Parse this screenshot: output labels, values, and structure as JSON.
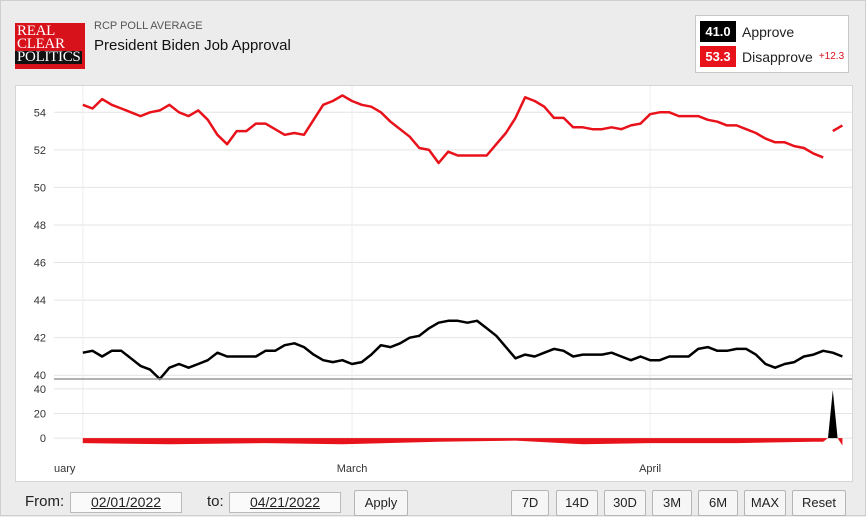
{
  "header": {
    "logo_lines": [
      "REAL",
      "CLEAR",
      "POLITICS"
    ],
    "supertitle": "RCP POLL AVERAGE",
    "title": "President Biden Job Approval"
  },
  "legend": {
    "approve": {
      "value": "41.0",
      "label": "Approve",
      "color": "#000000"
    },
    "disapprove": {
      "value": "53.3",
      "label": "Disapprove",
      "spread": "+12.3",
      "color": "#e8121b"
    }
  },
  "footer": {
    "from_label": "From:",
    "from_date": "02/01/2022",
    "to_label": "to:",
    "to_date": "04/21/2022",
    "apply_label": "Apply",
    "ranges": [
      "7D",
      "14D",
      "30D",
      "3M",
      "6M",
      "MAX",
      "Reset"
    ]
  },
  "chart_data": {
    "type": "line",
    "x_start": "2022-01-29",
    "x_end": "2022-04-22",
    "x_tick_labels": [
      {
        "label": "uary",
        "date": "2022-02-01"
      },
      {
        "label": "March",
        "date": "2022-03-01"
      },
      {
        "label": "April",
        "date": "2022-04-01"
      }
    ],
    "ylim": [
      39.8,
      55.4
    ],
    "y_ticks": [
      40,
      42,
      44,
      46,
      48,
      50,
      52,
      54
    ],
    "grid": true,
    "series": [
      {
        "name": "Disapprove",
        "color": "#e8121b",
        "points": [
          [
            "2022-02-01",
            54.4
          ],
          [
            "2022-02-02",
            54.2
          ],
          [
            "2022-02-03",
            54.7
          ],
          [
            "2022-02-04",
            54.4
          ],
          [
            "2022-02-05",
            54.2
          ],
          [
            "2022-02-06",
            54.0
          ],
          [
            "2022-02-07",
            53.8
          ],
          [
            "2022-02-08",
            54.0
          ],
          [
            "2022-02-09",
            54.1
          ],
          [
            "2022-02-10",
            54.4
          ],
          [
            "2022-02-11",
            54.0
          ],
          [
            "2022-02-12",
            53.8
          ],
          [
            "2022-02-13",
            54.1
          ],
          [
            "2022-02-14",
            53.6
          ],
          [
            "2022-02-15",
            52.8
          ],
          [
            "2022-02-16",
            52.3
          ],
          [
            "2022-02-17",
            53.0
          ],
          [
            "2022-02-18",
            53.0
          ],
          [
            "2022-02-19",
            53.4
          ],
          [
            "2022-02-20",
            53.4
          ],
          [
            "2022-02-21",
            53.1
          ],
          [
            "2022-02-22",
            52.8
          ],
          [
            "2022-02-23",
            52.9
          ],
          [
            "2022-02-24",
            52.8
          ],
          [
            "2022-02-25",
            53.6
          ],
          [
            "2022-02-26",
            54.4
          ],
          [
            "2022-02-27",
            54.6
          ],
          [
            "2022-02-28",
            54.9
          ],
          [
            "2022-03-01",
            54.6
          ],
          [
            "2022-03-02",
            54.4
          ],
          [
            "2022-03-03",
            54.3
          ],
          [
            "2022-03-04",
            54.0
          ],
          [
            "2022-03-05",
            53.5
          ],
          [
            "2022-03-06",
            53.1
          ],
          [
            "2022-03-07",
            52.7
          ],
          [
            "2022-03-08",
            52.1
          ],
          [
            "2022-03-09",
            52.0
          ],
          [
            "2022-03-10",
            51.3
          ],
          [
            "2022-03-11",
            51.9
          ],
          [
            "2022-03-12",
            51.7
          ],
          [
            "2022-03-13",
            51.7
          ],
          [
            "2022-03-14",
            51.7
          ],
          [
            "2022-03-15",
            51.7
          ],
          [
            "2022-03-16",
            52.3
          ],
          [
            "2022-03-17",
            52.9
          ],
          [
            "2022-03-18",
            53.7
          ],
          [
            "2022-03-19",
            54.8
          ],
          [
            "2022-03-20",
            54.6
          ],
          [
            "2022-03-21",
            54.3
          ],
          [
            "2022-03-22",
            53.7
          ],
          [
            "2022-03-23",
            53.7
          ],
          [
            "2022-03-24",
            53.2
          ],
          [
            "2022-03-25",
            53.2
          ],
          [
            "2022-03-26",
            53.1
          ],
          [
            "2022-03-27",
            53.1
          ],
          [
            "2022-03-28",
            53.2
          ],
          [
            "2022-03-29",
            53.1
          ],
          [
            "2022-03-30",
            53.3
          ],
          [
            "2022-03-31",
            53.4
          ],
          [
            "2022-04-01",
            53.9
          ],
          [
            "2022-04-02",
            54.0
          ],
          [
            "2022-04-03",
            54.0
          ],
          [
            "2022-04-04",
            53.8
          ],
          [
            "2022-04-05",
            53.8
          ],
          [
            "2022-04-06",
            53.8
          ],
          [
            "2022-04-07",
            53.6
          ],
          [
            "2022-04-08",
            53.5
          ],
          [
            "2022-04-09",
            53.3
          ],
          [
            "2022-04-10",
            53.3
          ],
          [
            "2022-04-11",
            53.1
          ],
          [
            "2022-04-12",
            52.9
          ],
          [
            "2022-04-13",
            52.6
          ],
          [
            "2022-04-14",
            52.4
          ],
          [
            "2022-04-15",
            52.4
          ],
          [
            "2022-04-16",
            52.2
          ],
          [
            "2022-04-17",
            52.1
          ],
          [
            "2022-04-18",
            51.8
          ],
          [
            "2022-04-19",
            51.6
          ],
          null,
          [
            "2022-04-20",
            53.0
          ],
          [
            "2022-04-21",
            53.3
          ]
        ]
      },
      {
        "name": "Approve",
        "color": "#000000",
        "points": [
          [
            "2022-02-01",
            41.2
          ],
          [
            "2022-02-02",
            41.3
          ],
          [
            "2022-02-03",
            41.0
          ],
          [
            "2022-02-04",
            41.3
          ],
          [
            "2022-02-05",
            41.3
          ],
          [
            "2022-02-06",
            40.9
          ],
          [
            "2022-02-07",
            40.5
          ],
          [
            "2022-02-08",
            40.3
          ],
          [
            "2022-02-09",
            39.8
          ],
          [
            "2022-02-10",
            40.4
          ],
          [
            "2022-02-11",
            40.6
          ],
          [
            "2022-02-12",
            40.4
          ],
          [
            "2022-02-13",
            40.6
          ],
          [
            "2022-02-14",
            40.8
          ],
          [
            "2022-02-15",
            41.2
          ],
          [
            "2022-02-16",
            41.0
          ],
          [
            "2022-02-17",
            41.0
          ],
          [
            "2022-02-18",
            41.0
          ],
          [
            "2022-02-19",
            41.0
          ],
          [
            "2022-02-20",
            41.3
          ],
          [
            "2022-02-21",
            41.3
          ],
          [
            "2022-02-22",
            41.6
          ],
          [
            "2022-02-23",
            41.7
          ],
          [
            "2022-02-24",
            41.5
          ],
          [
            "2022-02-25",
            41.1
          ],
          [
            "2022-02-26",
            40.8
          ],
          [
            "2022-02-27",
            40.7
          ],
          [
            "2022-02-28",
            40.8
          ],
          [
            "2022-03-01",
            40.6
          ],
          [
            "2022-03-02",
            40.7
          ],
          [
            "2022-03-03",
            41.1
          ],
          [
            "2022-03-04",
            41.6
          ],
          [
            "2022-03-05",
            41.5
          ],
          [
            "2022-03-06",
            41.7
          ],
          [
            "2022-03-07",
            42.0
          ],
          [
            "2022-03-08",
            42.1
          ],
          [
            "2022-03-09",
            42.5
          ],
          [
            "2022-03-10",
            42.8
          ],
          [
            "2022-03-11",
            42.9
          ],
          [
            "2022-03-12",
            42.9
          ],
          [
            "2022-03-13",
            42.8
          ],
          [
            "2022-03-14",
            42.9
          ],
          [
            "2022-03-15",
            42.5
          ],
          [
            "2022-03-16",
            42.1
          ],
          [
            "2022-03-17",
            41.5
          ],
          [
            "2022-03-18",
            40.9
          ],
          [
            "2022-03-19",
            41.1
          ],
          [
            "2022-03-20",
            41.0
          ],
          [
            "2022-03-21",
            41.2
          ],
          [
            "2022-03-22",
            41.4
          ],
          [
            "2022-03-23",
            41.3
          ],
          [
            "2022-03-24",
            41.0
          ],
          [
            "2022-03-25",
            41.1
          ],
          [
            "2022-03-26",
            41.1
          ],
          [
            "2022-03-27",
            41.1
          ],
          [
            "2022-03-28",
            41.2
          ],
          [
            "2022-03-29",
            41.0
          ],
          [
            "2022-03-30",
            40.8
          ],
          [
            "2022-03-31",
            41.0
          ],
          [
            "2022-04-01",
            40.8
          ],
          [
            "2022-04-02",
            40.8
          ],
          [
            "2022-04-03",
            41.0
          ],
          [
            "2022-04-04",
            41.0
          ],
          [
            "2022-04-05",
            41.0
          ],
          [
            "2022-04-06",
            41.4
          ],
          [
            "2022-04-07",
            41.5
          ],
          [
            "2022-04-08",
            41.3
          ],
          [
            "2022-04-09",
            41.3
          ],
          [
            "2022-04-10",
            41.4
          ],
          [
            "2022-04-11",
            41.4
          ],
          [
            "2022-04-12",
            41.1
          ],
          [
            "2022-04-13",
            40.6
          ],
          [
            "2022-04-14",
            40.4
          ],
          [
            "2022-04-15",
            40.6
          ],
          [
            "2022-04-16",
            40.7
          ],
          [
            "2022-04-17",
            41.0
          ],
          [
            "2022-04-18",
            41.1
          ],
          [
            "2022-04-19",
            41.3
          ],
          [
            "2022-04-20",
            41.2
          ],
          [
            "2022-04-21",
            41.0
          ]
        ]
      }
    ],
    "spread_panel": {
      "y_ticks": [
        0,
        20,
        40
      ],
      "ylim": [
        -8,
        48
      ],
      "color_positive": "#000000",
      "color_negative": "#e8121b",
      "points": [
        [
          "2022-02-01",
          -4
        ],
        [
          "2022-02-10",
          -5
        ],
        [
          "2022-02-20",
          -4
        ],
        [
          "2022-02-28",
          -5
        ],
        [
          "2022-03-10",
          -3
        ],
        [
          "2022-03-18",
          -2
        ],
        [
          "2022-03-25",
          -5
        ],
        [
          "2022-04-01",
          -4
        ],
        [
          "2022-04-10",
          -4
        ],
        [
          "2022-04-18",
          -3
        ],
        [
          "2022-04-19",
          -3
        ],
        [
          "2022-04-19T12:00",
          0
        ],
        [
          "2022-04-20",
          39
        ],
        [
          "2022-04-20T12:00",
          0
        ],
        [
          "2022-04-21",
          -6
        ]
      ]
    }
  }
}
